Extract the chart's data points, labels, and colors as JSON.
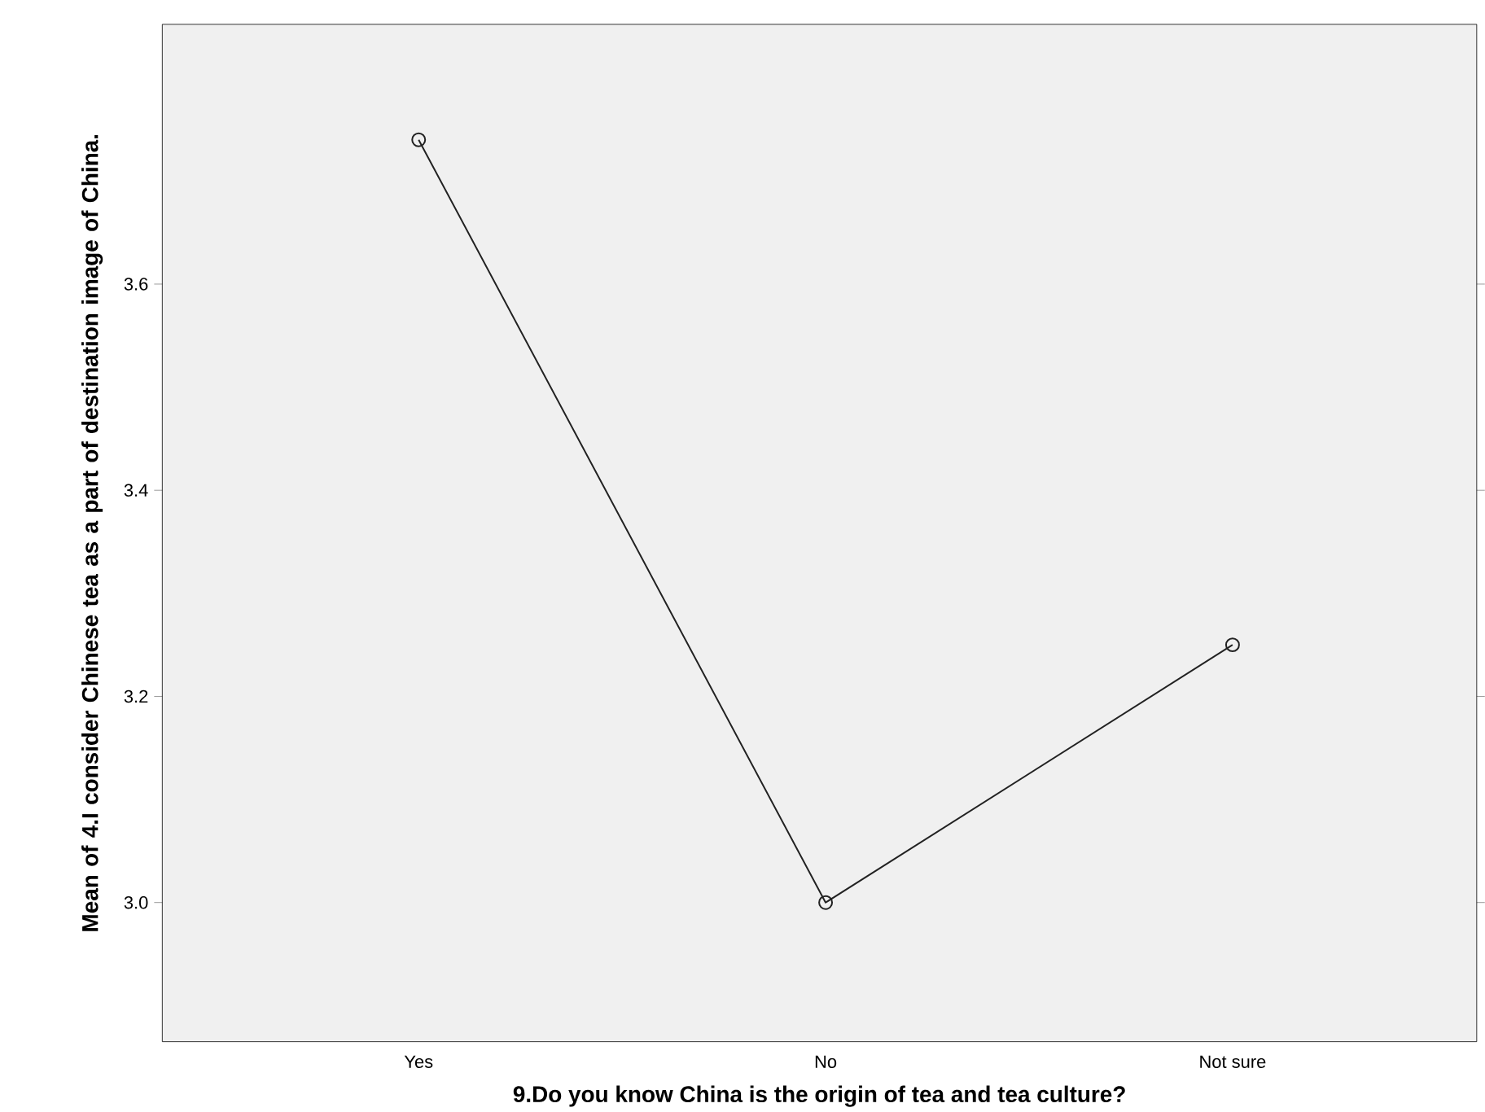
{
  "chart_data": {
    "type": "line",
    "xlabel": "9.Do you know China is the origin of tea and tea culture?",
    "ylabel": "Mean of 4.I consider Chinese tea as a part of destination image of China.",
    "categories": [
      "Yes",
      "No",
      "Not sure"
    ],
    "values": [
      3.74,
      3.0,
      3.25
    ],
    "color": "#222222",
    "marker": "circle",
    "line_style": "solid",
    "grid": false,
    "ylim": [
      2.865,
      3.852
    ],
    "yticks": [
      {
        "value": 3.0,
        "label": "3.0"
      },
      {
        "value": 3.2,
        "label": "3.2"
      },
      {
        "value": 3.4,
        "label": "3.4"
      },
      {
        "value": 3.6,
        "label": "3.6"
      }
    ]
  }
}
